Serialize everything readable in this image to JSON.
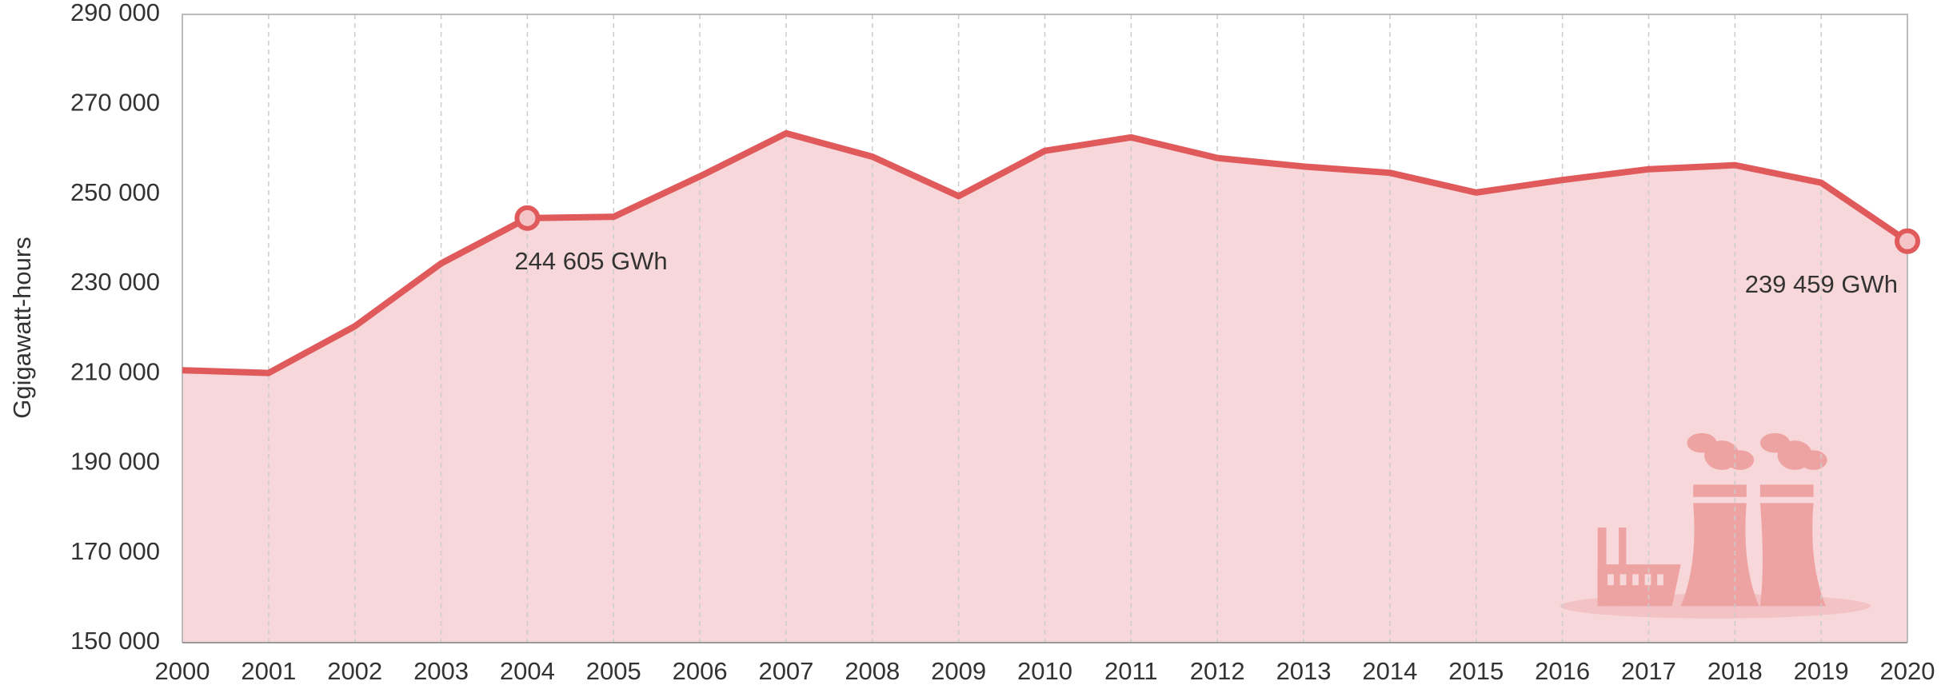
{
  "chart_data": {
    "type": "area",
    "y_label": "Ggigawatt-hours",
    "x": [
      2000,
      2001,
      2002,
      2003,
      2004,
      2005,
      2006,
      2007,
      2008,
      2009,
      2010,
      2011,
      2012,
      2013,
      2014,
      2015,
      2016,
      2017,
      2018,
      2019,
      2020
    ],
    "values": [
      210700,
      210100,
      220500,
      234500,
      244605,
      244900,
      253900,
      263500,
      258300,
      249500,
      259600,
      262600,
      258000,
      256100,
      254700,
      250300,
      253100,
      255500,
      256400,
      252500,
      239459
    ],
    "value_labels": [
      null,
      null,
      null,
      null,
      "244 605 GWh",
      null,
      null,
      null,
      null,
      null,
      null,
      null,
      null,
      null,
      null,
      null,
      null,
      null,
      null,
      null,
      "239 459 GWh"
    ],
    "color": "#e05a5c",
    "fill_color": "#f7d7d9",
    "xlim": [
      2000,
      2020
    ],
    "xticks": [
      2000,
      2001,
      2002,
      2003,
      2004,
      2005,
      2006,
      2007,
      2008,
      2009,
      2010,
      2011,
      2012,
      2013,
      2014,
      2015,
      2016,
      2017,
      2018,
      2019,
      2020
    ],
    "ylim": [
      150000,
      290000
    ],
    "yticks": [
      {
        "value": 150000,
        "label": "150 000"
      },
      {
        "value": 170000,
        "label": "170 000"
      },
      {
        "value": 190000,
        "label": "190 000"
      },
      {
        "value": 210000,
        "label": "210 000"
      },
      {
        "value": 230000,
        "label": "230 000"
      },
      {
        "value": 250000,
        "label": "250 000"
      },
      {
        "value": 270000,
        "label": "270 000"
      },
      {
        "value": 290000,
        "label": "290 000"
      }
    ],
    "grid": "x"
  }
}
